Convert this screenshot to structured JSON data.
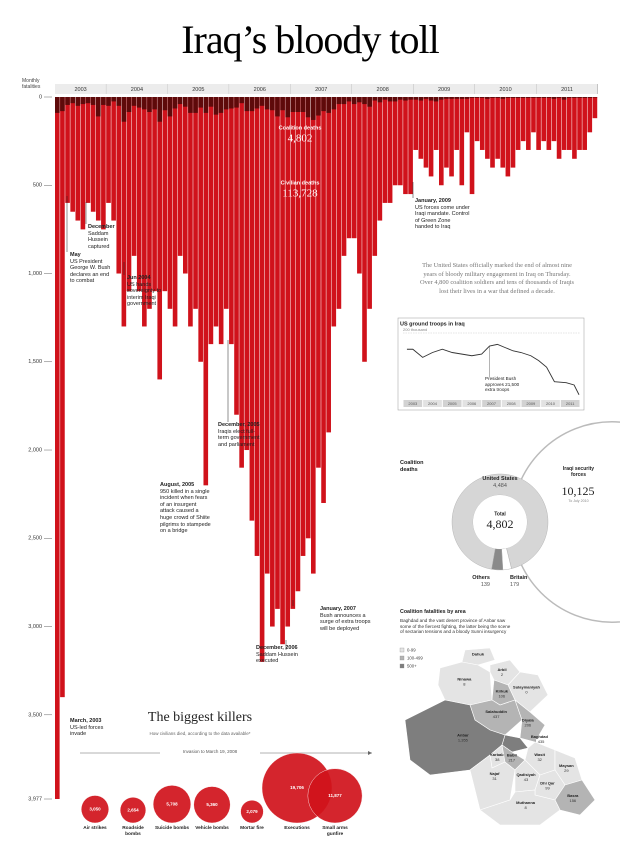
{
  "title": "Iraq’s bloody toll",
  "intro": "The United States officially marked the end of almost nine years of bloody military engagement in Iraq on Thursday. Over 4,800 coalition soldiers and tens of thousands of Iraqis lost their lives in a war that defined a decade.",
  "chart_data": [
    {
      "type": "bar",
      "y_label": "Monthly fatalities",
      "years": [
        "2003",
        "2004",
        "2005",
        "2006",
        "2007",
        "2008",
        "2009",
        "2010",
        "2011"
      ],
      "series": [
        {
          "name": "Civilian deaths",
          "color": "#d0121b",
          "total": {
            "value": 113728,
            "label": "113,728"
          },
          "values": [
            3977,
            3400,
            600,
            650,
            700,
            750,
            600,
            650,
            700,
            750,
            600,
            700,
            1000,
            1300,
            1100,
            900,
            1100,
            1300,
            1200,
            1100,
            1600,
            1100,
            1200,
            1300,
            900,
            1000,
            1300,
            1200,
            1500,
            2200,
            1400,
            1300,
            1400,
            1200,
            1400,
            1800,
            2100,
            2000,
            2400,
            2600,
            3200,
            2700,
            3000,
            2900,
            3100,
            3000,
            2900,
            2800,
            2600,
            2500,
            2700,
            2100,
            2300,
            1900,
            1300,
            1200,
            900,
            800,
            800,
            1000,
            1500,
            1200,
            900,
            700,
            600,
            600,
            500,
            500,
            550,
            550,
            300,
            350,
            400,
            450,
            300,
            500,
            400,
            450,
            300,
            500,
            200,
            550,
            250,
            300,
            350,
            400,
            350,
            400,
            450,
            400,
            300,
            250,
            300,
            200,
            300,
            250,
            300,
            250,
            350,
            300,
            300,
            350,
            300,
            300,
            200,
            120
          ]
        },
        {
          "name": "Coalition deaths",
          "color": "#5e0a0a",
          "total": {
            "value": 4802,
            "label": "4,802"
          },
          "values": [
            90,
            80,
            45,
            35,
            50,
            40,
            35,
            45,
            110,
            45,
            50,
            25,
            50,
            140,
            85,
            50,
            60,
            70,
            85,
            70,
            140,
            75,
            110,
            65,
            40,
            55,
            90,
            90,
            60,
            90,
            55,
            100,
            90,
            70,
            65,
            60,
            35,
            80,
            80,
            65,
            50,
            70,
            75,
            110,
            75,
            115,
            85,
            85,
            85,
            115,
            130,
            105,
            80,
            90,
            70,
            40,
            40,
            25,
            40,
            30,
            40,
            55,
            20,
            30,
            15,
            25,
            25,
            15,
            20,
            15,
            15,
            20,
            10,
            20,
            25,
            15,
            10,
            10,
            10,
            10,
            10,
            5,
            5,
            5,
            10,
            5,
            5,
            10,
            5,
            5,
            5,
            5,
            5,
            5,
            5,
            5,
            5,
            10,
            5,
            15,
            5,
            5,
            5,
            5,
            5,
            3
          ]
        }
      ],
      "ylim": [
        0,
        3977
      ],
      "yticks": [
        0,
        500,
        {
          "value": 1000,
          "label": "1,000"
        },
        {
          "value": 1500,
          "label": "1,500"
        },
        {
          "value": 2000,
          "label": "2,000"
        },
        {
          "value": 2500,
          "label": "2,500"
        },
        {
          "value": 3000,
          "label": "3,000"
        },
        {
          "value": 3500,
          "label": "3,500"
        },
        {
          "value": 3977,
          "label": "3,977"
        }
      ],
      "annotations": [
        {
          "heading": "March, 2003",
          "text": "US-led forces invade"
        },
        {
          "heading": "May",
          "text": "US President George W. Bush declares an end to combat"
        },
        {
          "heading": "December",
          "text": "Saddam Hussein captured"
        },
        {
          "heading": "Jun 2004",
          "text": "US hands sovereignty to interim Iraqi government"
        },
        {
          "heading": "August, 2005",
          "text": "950 killed in a single incident when fears of an insurgent attack caused a huge crowd of Shiite pilgrims to stampede on a bridge"
        },
        {
          "heading": "December, 2005",
          "text": "Iraqis elect full-term government and parliament"
        },
        {
          "heading": "December, 2006",
          "text": "Saddam Hussein executed"
        },
        {
          "heading": "January, 2007",
          "text": "Bush announces a surge of extra troops will be deployed"
        },
        {
          "heading": "January, 2009",
          "text": "US forces come under Iraqi mandate. Control of Green Zone handed to Iraq"
        }
      ]
    },
    {
      "type": "line",
      "title": "US ground troops in Iraq",
      "x": [
        2003.2,
        2003.5,
        2004,
        2004.5,
        2005,
        2005.5,
        2006,
        2006.5,
        2007,
        2007.4,
        2007.8,
        2008.2,
        2008.6,
        2009,
        2009.5,
        2009.9,
        2010.3,
        2010.7,
        2011.3,
        2011.7,
        2011.95
      ],
      "series": [
        {
          "color": "#333333",
          "values": [
            150,
            150,
            125,
            140,
            150,
            140,
            135,
            130,
            135,
            160,
            165,
            155,
            145,
            140,
            130,
            115,
            95,
            50,
            47,
            40,
            10
          ]
        }
      ],
      "xlim": [
        2003,
        2012
      ],
      "xticks": [
        2003,
        2004,
        2005,
        2006,
        2007,
        2008,
        2009,
        2010,
        2011
      ],
      "ylim": [
        0,
        200
      ],
      "yticks": [
        {
          "value": 200,
          "label": "200 thousand"
        }
      ],
      "annotation": "President Bush approves 21,500 extra troops"
    },
    {
      "type": "donut",
      "title": "Coalition deaths",
      "categories": [
        "United States",
        "Others",
        "Britain"
      ],
      "values": [
        4484,
        139,
        179
      ],
      "value_labels": [
        "4,484",
        "139",
        "179"
      ],
      "colors": [
        "#d6d6d6",
        "#ffffff",
        "#8a8a8a"
      ],
      "total_title": "Total",
      "total": {
        "value": 4802,
        "label": "4,802"
      },
      "comparison": {
        "name": "Iraqi security forces",
        "value": 10125,
        "label": "10,125",
        "note": "To July 2010"
      }
    },
    {
      "type": "bubble",
      "title": "The biggest killers",
      "subtitle": "How civilians died, according to the data available*",
      "period": "Invasion to March 19, 2008",
      "categories": [
        "Air strikes",
        "Roadside bombs",
        "Suicide bombs",
        "Vehicle bombs",
        "Mortar fire",
        "Executions",
        "Small arms gunfire"
      ],
      "values": [
        3050,
        2654,
        5708,
        5360,
        2079,
        19706,
        11877
      ],
      "value_labels": [
        "3,050",
        "2,654",
        "5,708",
        "5,360",
        "2,079",
        "19,706",
        "11,877"
      ],
      "color": "#d0121b"
    },
    {
      "type": "choropleth",
      "title": "Coalition fatalities by area",
      "text": "Baghdad and the vast desert province of Anbar saw some of the fiercest fighting, the latter being the scene of sectarian tensions and a bloody Sunni insurgency",
      "legend": [
        {
          "label": "0-99",
          "min": 0,
          "color": "#e4e4e4"
        },
        {
          "label": "100-499",
          "min": 100,
          "color": "#b4b4b4"
        },
        {
          "label": "500+",
          "min": 500,
          "color": "#7e7e7e"
        }
      ],
      "regions": [
        {
          "name": "Dahuk",
          "value": null
        },
        {
          "name": "Ninawa",
          "value": 8
        },
        {
          "name": "Arbil",
          "value": 2
        },
        {
          "name": "Sulaymaniyah",
          "value": 0
        },
        {
          "name": "Kirkuk",
          "value": 106
        },
        {
          "name": "Salahuddin",
          "value": 437
        },
        {
          "name": "Diyala",
          "value": 206
        },
        {
          "name": "Baghdad",
          "value": 1435,
          "label": "1,435"
        },
        {
          "name": "Anbar",
          "value": 1355,
          "label": "1,355"
        },
        {
          "name": "Karbala",
          "value": 38
        },
        {
          "name": "Babil",
          "value": 217
        },
        {
          "name": "Wasit",
          "value": 32
        },
        {
          "name": "Maysan",
          "value": 29
        },
        {
          "name": "Najaf",
          "value": 31
        },
        {
          "name": "Qadisiyah",
          "value": 43
        },
        {
          "name": "Dhi Qar",
          "value": 99
        },
        {
          "name": "Basra",
          "value": 156
        },
        {
          "name": "Muthanna",
          "value": 8
        }
      ]
    }
  ]
}
